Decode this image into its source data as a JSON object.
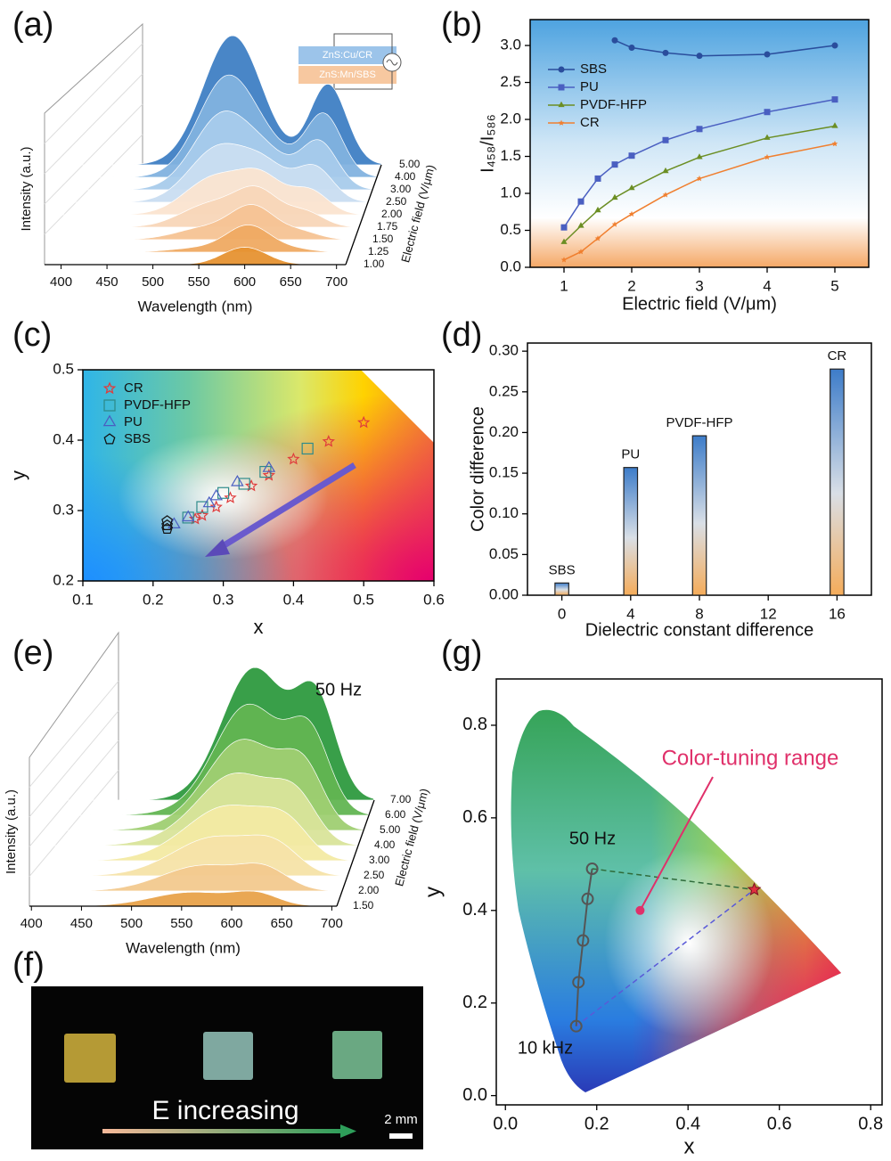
{
  "chart_data": [
    {
      "type": "waterfall",
      "panel": "(a)",
      "x_label": "Wavelength (nm)",
      "y_label": "Intensity (a.u.)",
      "z_label": "Electric field (V/μm)",
      "xlim": [
        382,
        710
      ],
      "xticks": [
        400,
        450,
        500,
        550,
        600,
        650,
        700
      ],
      "zticks": [
        {
          "value": 1,
          "label": "1.00"
        },
        {
          "value": 1.25,
          "label": "1.25"
        },
        {
          "value": 1.5,
          "label": "1.50"
        },
        {
          "value": 1.75,
          "label": "1.75"
        },
        {
          "value": 2,
          "label": "2.00"
        },
        {
          "value": 2.5,
          "label": "2.50"
        },
        {
          "value": 3,
          "label": "3.00"
        },
        {
          "value": 4,
          "label": "4.00"
        },
        {
          "value": 5,
          "label": "5.00"
        }
      ],
      "colors": [
        "#e69232",
        "#efaa62",
        "#f5c393",
        "#f8d6b8",
        "#fbe4d0",
        "#c9ddf1",
        "#a8cbeb",
        "#82b2df",
        "#3f7fc4"
      ],
      "legend": [
        "ZnS:Cu/CR",
        "ZnS:Mn/SBS"
      ]
    },
    {
      "type": "line",
      "panel": "(b)",
      "x_label": "Electric field (V/μm)",
      "y_label": "I₄₅₈/I₅₈₆",
      "xlim": [
        0.5,
        5.5
      ],
      "xticks": [
        1,
        2,
        3,
        4,
        5
      ],
      "ylim": [
        0,
        3.35
      ],
      "yticks": [
        {
          "value": 0,
          "label": "0.0"
        },
        0.5,
        {
          "value": 1,
          "label": "1.0"
        },
        1.5,
        {
          "value": 2,
          "label": "2.0"
        },
        2.5,
        {
          "value": 3,
          "label": "3.0"
        }
      ],
      "legend": "upper left",
      "series": [
        {
          "name": "SBS",
          "color": "#2a4d9c",
          "marker": "circle",
          "x": [
            1.75,
            2,
            2.5,
            3,
            4,
            5
          ],
          "values": [
            3.07,
            2.97,
            2.9,
            2.86,
            2.88,
            3.0
          ]
        },
        {
          "name": "PU",
          "color": "#4a5fc1",
          "marker": "square",
          "x": [
            1,
            1.25,
            1.5,
            1.75,
            2,
            2.5,
            3,
            4,
            5
          ],
          "values": [
            0.54,
            0.89,
            1.2,
            1.39,
            1.51,
            1.72,
            1.87,
            2.1,
            2.27
          ]
        },
        {
          "name": "PVDF-HFP",
          "color": "#6b8e23",
          "marker": "triangle",
          "x": [
            1,
            1.25,
            1.5,
            1.75,
            2,
            2.5,
            3,
            4,
            5
          ],
          "values": [
            0.34,
            0.56,
            0.77,
            0.94,
            1.07,
            1.3,
            1.49,
            1.75,
            1.91
          ]
        },
        {
          "name": "CR",
          "color": "#f07f2f",
          "marker": "star",
          "x": [
            1,
            1.25,
            1.5,
            1.75,
            2,
            2.5,
            3,
            4,
            5
          ],
          "values": [
            0.1,
            0.21,
            0.39,
            0.58,
            0.72,
            0.98,
            1.2,
            1.49,
            1.67
          ]
        }
      ]
    },
    {
      "type": "scatter",
      "panel": "(c)",
      "x_label": "x",
      "y_label": "y",
      "xlim": [
        0.1,
        0.6
      ],
      "xticks": [
        0.1,
        0.2,
        0.3,
        0.4,
        0.5,
        0.6
      ],
      "ylim": [
        0.2,
        0.5
      ],
      "yticks": [
        0.2,
        0.3,
        0.4,
        0.5
      ],
      "legend": "upper left",
      "series": [
        {
          "name": "CR",
          "color": "#e03c3c",
          "marker": "star",
          "x": [
            0.26,
            0.27,
            0.29,
            0.31,
            0.34,
            0.365,
            0.4,
            0.45,
            0.5
          ],
          "values": [
            0.288,
            0.293,
            0.305,
            0.318,
            0.335,
            0.35,
            0.373,
            0.398,
            0.425
          ]
        },
        {
          "name": "PVDF-HFP",
          "color": "#2e8b8b",
          "marker": "square",
          "x": [
            0.25,
            0.27,
            0.3,
            0.33,
            0.36,
            0.42
          ],
          "values": [
            0.29,
            0.305,
            0.325,
            0.338,
            0.355,
            0.388
          ]
        },
        {
          "name": "PU",
          "color": "#4a5fc1",
          "marker": "triangle",
          "x": [
            0.23,
            0.25,
            0.28,
            0.29,
            0.32,
            0.365
          ],
          "values": [
            0.28,
            0.29,
            0.31,
            0.32,
            0.34,
            0.36
          ]
        },
        {
          "name": "SBS",
          "color": "#111111",
          "marker": "pentagon",
          "x": [
            0.22,
            0.22,
            0.22
          ],
          "values": [
            0.274,
            0.279,
            0.285
          ]
        }
      ]
    },
    {
      "type": "bar",
      "panel": "(d)",
      "x_label": "Dielectric constant difference",
      "y_label": "Color difference",
      "xlim": [
        -2,
        18
      ],
      "xticks": [
        0,
        4,
        8,
        12,
        16
      ],
      "ylim": [
        0,
        0.31
      ],
      "yticks": [
        {
          "value": 0,
          "label": "0.00"
        },
        0.05,
        {
          "value": 0.1,
          "label": "0.10"
        },
        0.15,
        {
          "value": 0.2,
          "label": "0.20"
        },
        0.25,
        {
          "value": 0.3,
          "label": "0.30"
        }
      ],
      "x": [
        0,
        4,
        8,
        16
      ],
      "values": [
        0.015,
        0.157,
        0.196,
        0.278
      ],
      "labels": [
        "SBS",
        "PU",
        "PVDF-HFP",
        "CR"
      ]
    },
    {
      "type": "waterfall",
      "panel": "(e)",
      "x_label": "Wavelength (nm)",
      "y_label": "Intensity (a.u.)",
      "z_label": "Electric field (V/μm)",
      "annotation": "50 Hz",
      "xlim": [
        398,
        705
      ],
      "xticks": [
        400,
        450,
        500,
        550,
        600,
        650,
        700
      ],
      "zticks": [
        {
          "value": 1.5,
          "label": "1.50"
        },
        {
          "value": 2,
          "label": "2.00"
        },
        {
          "value": 2.5,
          "label": "2.50"
        },
        {
          "value": 3,
          "label": "3.00"
        },
        {
          "value": 4,
          "label": "4.00"
        },
        {
          "value": 5,
          "label": "5.00"
        },
        {
          "value": 6,
          "label": "6.00"
        },
        {
          "value": 7,
          "label": "7.00"
        }
      ],
      "colors": [
        "#e8a24a",
        "#f2c98e",
        "#f6e3a8",
        "#f3eaa3",
        "#d9e49a",
        "#9fcf72",
        "#62b552",
        "#2e9a3f"
      ]
    },
    {
      "type": "image",
      "panel": "(f)",
      "caption": "E increasing",
      "scale_bar": "2 mm"
    },
    {
      "type": "cie",
      "panel": "(g)",
      "x_label": "x",
      "y_label": "y",
      "xlim": [
        -0.02,
        0.825
      ],
      "xticks": [
        {
          "value": 0,
          "label": "0.0"
        },
        0.2,
        0.4,
        0.6,
        0.8
      ],
      "ylim": [
        -0.02,
        0.9
      ],
      "yticks": [
        {
          "value": 0,
          "label": "0.0"
        },
        0.2,
        0.4,
        0.6,
        0.8
      ],
      "series": [
        {
          "color": "#555555",
          "x": [
            0.19,
            0.18,
            0.17,
            0.16,
            0.155
          ],
          "values": [
            0.49,
            0.425,
            0.335,
            0.245,
            0.15
          ]
        }
      ],
      "star": {
        "x": 0.545,
        "y": 0.445,
        "color": "#e03040"
      },
      "dot": {
        "x": 0.295,
        "y": 0.4,
        "color": "#e0306a"
      },
      "annotations": [
        "Color-tuning range",
        "50 Hz",
        "10 kHz"
      ]
    }
  ]
}
